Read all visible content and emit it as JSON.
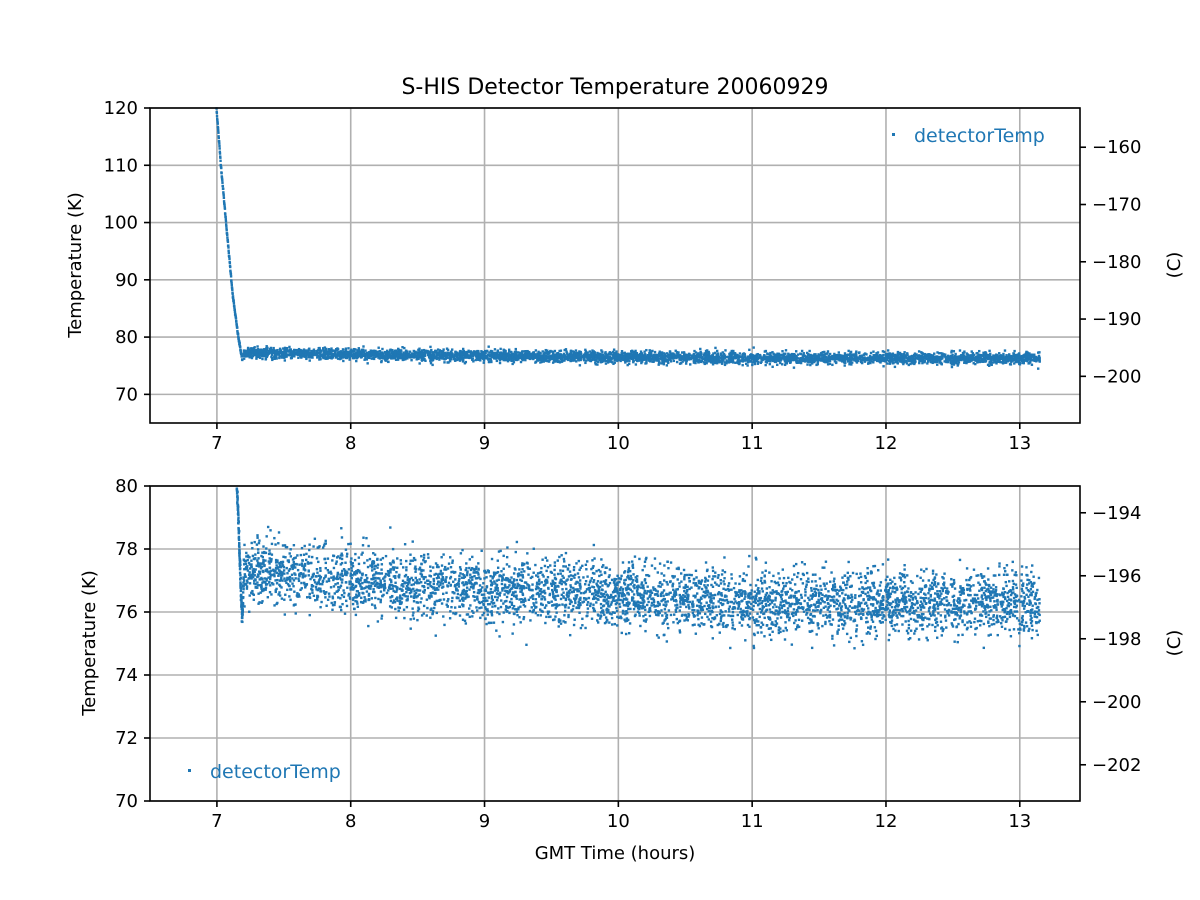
{
  "chart_data": [
    {
      "type": "scatter",
      "panel": "top",
      "title": "S-HIS Detector Temperature 20060929",
      "xlabel": "",
      "ylabel": "Temperature (K)",
      "y2label": "(C)",
      "xlim": [
        6.5,
        13.45
      ],
      "ylim": [
        65,
        120
      ],
      "y2lim": [
        -208.15,
        -153.15
      ],
      "xticks": [
        7,
        8,
        9,
        10,
        11,
        12,
        13
      ],
      "yticks": [
        70,
        80,
        90,
        100,
        110,
        120
      ],
      "y2ticks": [
        -160,
        -170,
        -180,
        -190,
        -200
      ],
      "grid": true,
      "legend_position": "top-right",
      "series": [
        {
          "name": "detectorTemp",
          "color": "#1f77b4",
          "marker": "point",
          "x_range": [
            6.98,
            13.15
          ],
          "initial_drop": [
            [
              6.98,
              125.0
            ],
            [
              7.03,
              110.0
            ],
            [
              7.08,
              97.0
            ],
            [
              7.12,
              87.0
            ],
            [
              7.16,
              80.0
            ],
            [
              7.19,
              76.0
            ]
          ],
          "trend": [
            [
              7.2,
              77.3
            ],
            [
              8.0,
              77.0
            ],
            [
              9.0,
              76.7
            ],
            [
              10.0,
              76.5
            ],
            [
              11.0,
              76.3
            ],
            [
              12.0,
              76.3
            ],
            [
              13.15,
              76.3
            ]
          ],
          "spread": 1.3
        }
      ]
    },
    {
      "type": "scatter",
      "panel": "bottom",
      "title": "",
      "xlabel": "GMT Time (hours)",
      "ylabel": "Temperature (K)",
      "y2label": "(C)",
      "xlim": [
        6.5,
        13.45
      ],
      "ylim": [
        70,
        80
      ],
      "y2lim": [
        -203.15,
        -193.15
      ],
      "xticks": [
        7,
        8,
        9,
        10,
        11,
        12,
        13
      ],
      "yticks": [
        70,
        72,
        74,
        76,
        78,
        80
      ],
      "y2ticks": [
        -194,
        -196,
        -198,
        -200,
        -202
      ],
      "grid": true,
      "legend_position": "bottom-left",
      "series": [
        {
          "name": "detectorTemp",
          "color": "#1f77b4",
          "marker": "point",
          "x_range": [
            7.14,
            13.15
          ],
          "initial_drop": [
            [
              7.14,
              81.0
            ],
            [
              7.16,
              79.0
            ],
            [
              7.18,
              76.5
            ],
            [
              7.19,
              75.8
            ],
            [
              7.2,
              77.0
            ]
          ],
          "trend": [
            [
              7.2,
              77.3
            ],
            [
              8.0,
              77.0
            ],
            [
              9.0,
              76.7
            ],
            [
              10.0,
              76.5
            ],
            [
              11.0,
              76.3
            ],
            [
              12.0,
              76.3
            ],
            [
              13.15,
              76.3
            ]
          ],
          "spread": 1.3
        }
      ]
    }
  ]
}
